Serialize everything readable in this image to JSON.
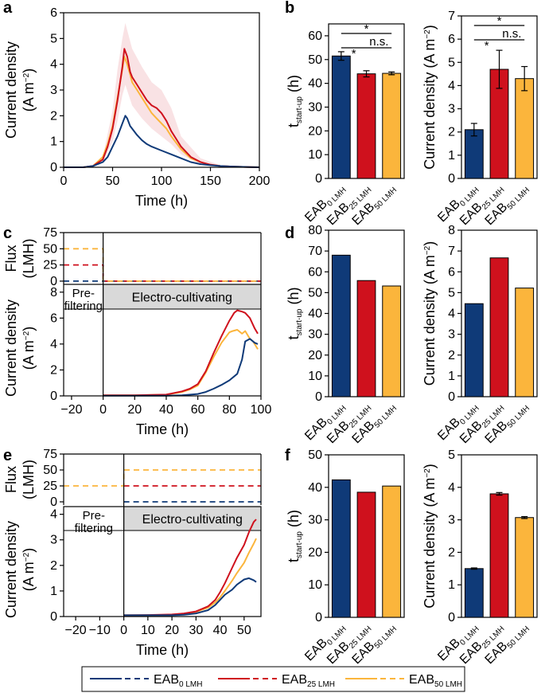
{
  "colors": {
    "eab0": "#0f3a78",
    "eab25": "#cf111d",
    "eab50": "#fbb53c"
  },
  "panel_labels": {
    "a": "a",
    "b": "b",
    "c": "c",
    "d": "d",
    "e": "e",
    "f": "f"
  },
  "phase_labels": {
    "pre_line1": "Pre-",
    "pre_line2": "filtering",
    "electro": "Electro-cultivating"
  },
  "legend": {
    "entries": [
      {
        "base": "EAB",
        "sub": "0 LMH",
        "color_key": "eab0"
      },
      {
        "base": "EAB",
        "sub": "25 LMH",
        "color_key": "eab25"
      },
      {
        "base": "EAB",
        "sub": "50 LMH",
        "color_key": "eab50"
      }
    ]
  },
  "chart_data": [
    {
      "id": "a",
      "type": "line",
      "xlabel": "Time (h)",
      "ylabel_line1": "Current density",
      "ylabel_line2": "(A m",
      "ylabel_sup": "−2",
      "ylabel_end": ")",
      "xlim": [
        0,
        200
      ],
      "ylim": [
        0,
        6
      ],
      "xticks": [
        0,
        50,
        100,
        150,
        200
      ],
      "yticks": [
        0,
        1,
        2,
        3,
        4,
        5,
        6
      ],
      "series": [
        {
          "name": "EAB 0 LMH",
          "color_key": "eab0",
          "x": [
            0,
            20,
            30,
            40,
            45,
            50,
            55,
            60,
            63,
            65,
            68,
            70,
            75,
            80,
            85,
            90,
            100,
            110,
            120,
            130,
            140,
            150,
            160,
            170,
            180,
            190,
            200
          ],
          "y": [
            0,
            0,
            0.05,
            0.2,
            0.4,
            0.8,
            1.2,
            1.7,
            2.0,
            1.9,
            1.6,
            1.5,
            1.25,
            1.05,
            0.9,
            0.8,
            0.65,
            0.5,
            0.35,
            0.2,
            0.12,
            0.08,
            0.05,
            0.03,
            0.02,
            0.01,
            0
          ]
        },
        {
          "name": "EAB 25 LMH",
          "color_key": "eab25",
          "x": [
            0,
            20,
            30,
            40,
            45,
            50,
            55,
            60,
            62,
            65,
            68,
            70,
            75,
            80,
            85,
            90,
            95,
            100,
            105,
            110,
            120,
            130,
            140,
            150,
            160,
            170,
            180,
            190,
            200
          ],
          "y": [
            0,
            0,
            0.05,
            0.3,
            0.8,
            1.5,
            2.6,
            3.9,
            4.6,
            4.3,
            3.7,
            3.5,
            3.2,
            2.9,
            2.6,
            2.4,
            2.3,
            2.1,
            1.8,
            1.4,
            0.8,
            0.4,
            0.2,
            0.1,
            0.05,
            0.03,
            0.02,
            0.01,
            0
          ]
        },
        {
          "name": "EAB 50 LMH",
          "color_key": "eab50",
          "x": [
            0,
            20,
            30,
            40,
            45,
            50,
            55,
            60,
            62,
            65,
            68,
            70,
            75,
            80,
            85,
            90,
            95,
            100,
            105,
            110,
            120,
            130,
            140,
            150,
            160,
            170,
            180,
            190,
            200
          ],
          "y": [
            0,
            0,
            0.05,
            0.4,
            0.9,
            1.6,
            2.7,
            3.8,
            4.3,
            4.0,
            3.6,
            3.3,
            3.0,
            2.7,
            2.4,
            2.1,
            1.9,
            1.7,
            1.5,
            1.2,
            0.7,
            0.35,
            0.2,
            0.1,
            0.05,
            0.03,
            0.02,
            0.01,
            0
          ]
        }
      ],
      "band": {
        "series": "EAB 25 LMH",
        "x": [
          40,
          50,
          55,
          60,
          63,
          70,
          80,
          90,
          100,
          110,
          120,
          140,
          160
        ],
        "lower": [
          0.2,
          1.0,
          1.8,
          2.8,
          3.2,
          2.4,
          1.9,
          1.5,
          1.2,
          0.9,
          0.5,
          0.1,
          0.02
        ],
        "upper": [
          0.4,
          2.2,
          3.8,
          5.0,
          5.6,
          4.6,
          3.9,
          3.3,
          3.0,
          2.3,
          1.2,
          0.35,
          0.08
        ]
      }
    },
    {
      "id": "b-left",
      "type": "bar",
      "ylabel": "t",
      "ylabel_sub": "start-up",
      "ylabel_end": " (h)",
      "ylim": [
        0,
        65
      ],
      "yticks": [
        0,
        10,
        20,
        30,
        40,
        50,
        60
      ],
      "categories": [
        {
          "base": "EAB",
          "sub": "0 LMH"
        },
        {
          "base": "EAB",
          "sub": "25 LMH"
        },
        {
          "base": "EAB",
          "sub": "50 LMH"
        }
      ],
      "values": [
        51.5,
        44,
        44.2
      ],
      "errors": [
        1.8,
        1.3,
        0.6
      ],
      "annotations": [
        {
          "from": 0,
          "to": 2,
          "label": "*"
        },
        {
          "from": 0,
          "to": 1,
          "label": "*"
        },
        {
          "from": 1,
          "to": 2,
          "label": "n.s."
        }
      ]
    },
    {
      "id": "b-right",
      "type": "bar",
      "ylabel": "Current density (A m",
      "ylabel_sup": "−2",
      "ylabel_end": ")",
      "ylim": [
        0,
        7
      ],
      "yticks": [
        0,
        1,
        2,
        3,
        4,
        5,
        6,
        7
      ],
      "categories": [
        {
          "base": "EAB",
          "sub": "0 LMH"
        },
        {
          "base": "EAB",
          "sub": "25 LMH"
        },
        {
          "base": "EAB",
          "sub": "50 LMH"
        }
      ],
      "values": [
        2.1,
        4.7,
        4.3
      ],
      "errors": [
        0.27,
        0.82,
        0.52
      ],
      "annotations": [
        {
          "from": 0,
          "to": 2,
          "label": "*"
        },
        {
          "from": 0,
          "to": 1,
          "label": "*"
        },
        {
          "from": 1,
          "to": 2,
          "label": "n.s."
        }
      ]
    },
    {
      "id": "c",
      "type": "line",
      "xlabel": "Time (h)",
      "xlim": [
        -25,
        100
      ],
      "xticks": [
        -20,
        0,
        20,
        40,
        60,
        80,
        100
      ],
      "flux": {
        "ylabel_line1": "Flux",
        "ylabel_line2": "(LMH)",
        "ylim": [
          -5,
          75
        ],
        "yticks": [
          0,
          25,
          50,
          75
        ],
        "series": [
          {
            "color_key": "eab0",
            "x": [
              -25,
              0,
              0,
              100
            ],
            "y": [
              0,
              0,
              0,
              0
            ]
          },
          {
            "color_key": "eab25",
            "x": [
              -25,
              0,
              0,
              100
            ],
            "y": [
              25,
              25,
              0,
              0
            ]
          },
          {
            "color_key": "eab50",
            "x": [
              -25,
              0,
              0,
              100
            ],
            "y": [
              50,
              50,
              0,
              0
            ]
          }
        ]
      },
      "current": {
        "ylabel_line1": "Current density",
        "ylabel_line2": "(A m",
        "ylabel_sup": "−2",
        "ylabel_end": ")",
        "ylim": [
          0,
          8.6
        ],
        "yticks": [
          0,
          2,
          4,
          6,
          8
        ],
        "series": [
          {
            "name": "EAB 0 LMH",
            "color_key": "eab0",
            "x": [
              0,
              20,
              40,
              50,
              60,
              65,
              70,
              75,
              80,
              85,
              88,
              90,
              93,
              96,
              98
            ],
            "y": [
              0.02,
              0.02,
              0.02,
              0.05,
              0.15,
              0.3,
              0.55,
              0.85,
              1.2,
              1.7,
              2.8,
              4.2,
              4.4,
              4.1,
              4.0
            ]
          },
          {
            "name": "EAB 25 LMH",
            "color_key": "eab25",
            "x": [
              0,
              20,
              40,
              50,
              55,
              60,
              65,
              70,
              75,
              80,
              83,
              85,
              88,
              90,
              93,
              96,
              98
            ],
            "y": [
              0.05,
              0.05,
              0.1,
              0.35,
              0.55,
              0.9,
              1.9,
              3.3,
              4.6,
              5.8,
              6.4,
              6.6,
              6.5,
              6.4,
              6.0,
              5.2,
              4.8
            ]
          },
          {
            "name": "EAB 50 LMH",
            "color_key": "eab50",
            "x": [
              0,
              20,
              40,
              50,
              55,
              60,
              65,
              70,
              75,
              80,
              82,
              85,
              88,
              90,
              93,
              95,
              98
            ],
            "y": [
              0.05,
              0.05,
              0.1,
              0.3,
              0.5,
              0.8,
              1.8,
              3.0,
              4.1,
              4.9,
              5.0,
              5.1,
              4.8,
              5.0,
              4.4,
              4.2,
              3.6
            ]
          }
        ]
      }
    },
    {
      "id": "d-left",
      "type": "bar",
      "ylabel": "t",
      "ylabel_sub": "start-up",
      "ylabel_end": " (h)",
      "ylim": [
        0,
        80
      ],
      "yticks": [
        0,
        10,
        20,
        30,
        40,
        50,
        60,
        70,
        80
      ],
      "categories": [
        {
          "base": "EAB",
          "sub": "0 LMH"
        },
        {
          "base": "EAB",
          "sub": "25 LMH"
        },
        {
          "base": "EAB",
          "sub": "50 LMH"
        }
      ],
      "values": [
        68,
        55.8,
        53.2
      ]
    },
    {
      "id": "d-right",
      "type": "bar",
      "ylabel": "Current density (A m",
      "ylabel_sup": "−2",
      "ylabel_end": ")",
      "ylim": [
        0,
        8
      ],
      "yticks": [
        0,
        1,
        2,
        3,
        4,
        5,
        6,
        7,
        8
      ],
      "categories": [
        {
          "base": "EAB",
          "sub": "0 LMH"
        },
        {
          "base": "EAB",
          "sub": "25 LMH"
        },
        {
          "base": "EAB",
          "sub": "50 LMH"
        }
      ],
      "values": [
        4.47,
        6.67,
        5.22
      ]
    },
    {
      "id": "e",
      "type": "line",
      "xlabel": "Time (h)",
      "xlim": [
        -25,
        57
      ],
      "xticks": [
        -20,
        -10,
        0,
        10,
        20,
        30,
        40,
        50
      ],
      "flux": {
        "ylabel_line1": "Flux",
        "ylabel_line2": "(LMH)",
        "ylim": [
          -5,
          75
        ],
        "yticks": [
          0,
          25,
          50,
          75
        ],
        "series": [
          {
            "color_key": "eab0",
            "x": [
              0,
              57
            ],
            "y": [
              0,
              0
            ]
          },
          {
            "color_key": "eab25",
            "x": [
              0,
              57
            ],
            "y": [
              25,
              25
            ]
          },
          {
            "color_key": "eab50",
            "x": [
              -25,
              0,
              0,
              57
            ],
            "y": [
              25,
              25,
              50,
              50
            ]
          }
        ]
      },
      "current": {
        "ylabel_line1": "Current density",
        "ylabel_line2": "(A m",
        "ylabel_sup": "−2",
        "ylabel_end": ")",
        "ylim": [
          0,
          4.3
        ],
        "yticks": [
          0,
          1,
          2,
          3,
          4
        ],
        "series": [
          {
            "name": "EAB 0 LMH",
            "color_key": "eab0",
            "x": [
              0,
              10,
              20,
              25,
              30,
              35,
              38,
              40,
              42,
              45,
              47,
              50,
              52,
              54,
              55
            ],
            "y": [
              0.05,
              0.05,
              0.05,
              0.07,
              0.12,
              0.25,
              0.45,
              0.65,
              0.85,
              1.05,
              1.25,
              1.45,
              1.5,
              1.42,
              1.35
            ]
          },
          {
            "name": "EAB 25 LMH",
            "color_key": "eab25",
            "x": [
              0,
              10,
              20,
              25,
              30,
              35,
              38,
              40,
              42,
              45,
              47,
              50,
              52,
              54,
              55
            ],
            "y": [
              0.05,
              0.06,
              0.08,
              0.12,
              0.2,
              0.4,
              0.65,
              0.95,
              1.3,
              1.9,
              2.3,
              2.8,
              3.3,
              3.7,
              3.8
            ]
          },
          {
            "name": "EAB 50 LMH",
            "color_key": "eab50",
            "x": [
              0,
              10,
              20,
              25,
              30,
              35,
              38,
              40,
              42,
              45,
              47,
              50,
              52,
              54,
              55
            ],
            "y": [
              0.05,
              0.05,
              0.06,
              0.1,
              0.18,
              0.35,
              0.55,
              0.75,
              1.0,
              1.4,
              1.7,
              2.1,
              2.5,
              2.85,
              3.05
            ]
          }
        ]
      }
    },
    {
      "id": "f-left",
      "type": "bar",
      "ylabel": "t",
      "ylabel_sub": "start-up",
      "ylabel_end": " (h)",
      "ylim": [
        0,
        50
      ],
      "yticks": [
        0,
        10,
        20,
        30,
        40,
        50
      ],
      "categories": [
        {
          "base": "EAB",
          "sub": "0 LMH"
        },
        {
          "base": "EAB",
          "sub": "25 LMH"
        },
        {
          "base": "EAB",
          "sub": "50 LMH"
        }
      ],
      "values": [
        42.3,
        38.5,
        40.4
      ]
    },
    {
      "id": "f-right",
      "type": "bar",
      "ylabel": "Current density (A m",
      "ylabel_sup": "−2",
      "ylabel_end": ")",
      "ylim": [
        0,
        5
      ],
      "yticks": [
        0,
        1,
        2,
        3,
        4,
        5
      ],
      "categories": [
        {
          "base": "EAB",
          "sub": "0 LMH"
        },
        {
          "base": "EAB",
          "sub": "25 LMH"
        },
        {
          "base": "EAB",
          "sub": "50 LMH"
        }
      ],
      "values": [
        1.5,
        3.8,
        3.07
      ],
      "errors": [
        0.02,
        0.04,
        0.03
      ]
    }
  ]
}
